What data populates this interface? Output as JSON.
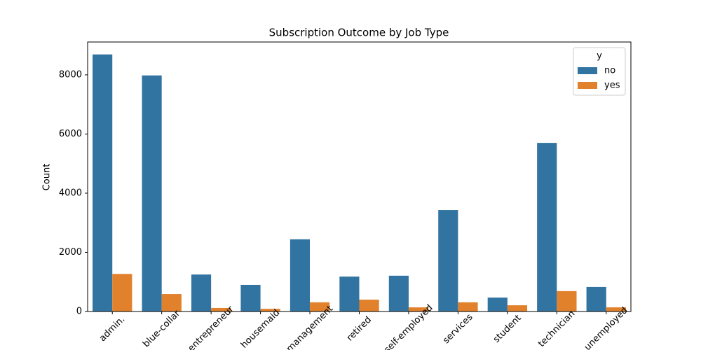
{
  "chart_data": {
    "type": "grouped_bar",
    "title": "Subscription Outcome by Job Type",
    "ylabel": "Count",
    "categories": [
      "admin.",
      "blue-collar",
      "entrepreneur",
      "housemaid",
      "management",
      "retired",
      "self-employed",
      "services",
      "student",
      "technician",
      "unemployed"
    ],
    "series": [
      {
        "name": "no",
        "color": "#3274a1",
        "values": [
          8690,
          7980,
          1250,
          900,
          2440,
          1180,
          1210,
          3430,
          470,
          5700,
          830
        ]
      },
      {
        "name": "yes",
        "color": "#e1812c",
        "values": [
          1270,
          590,
          120,
          90,
          310,
          400,
          140,
          310,
          210,
          690,
          140
        ]
      }
    ],
    "ylim": [
      0,
      9110
    ],
    "yticks": [
      0,
      2000,
      4000,
      6000,
      8000
    ],
    "legend_title": "y",
    "legend": "upper right",
    "grid": false
  }
}
